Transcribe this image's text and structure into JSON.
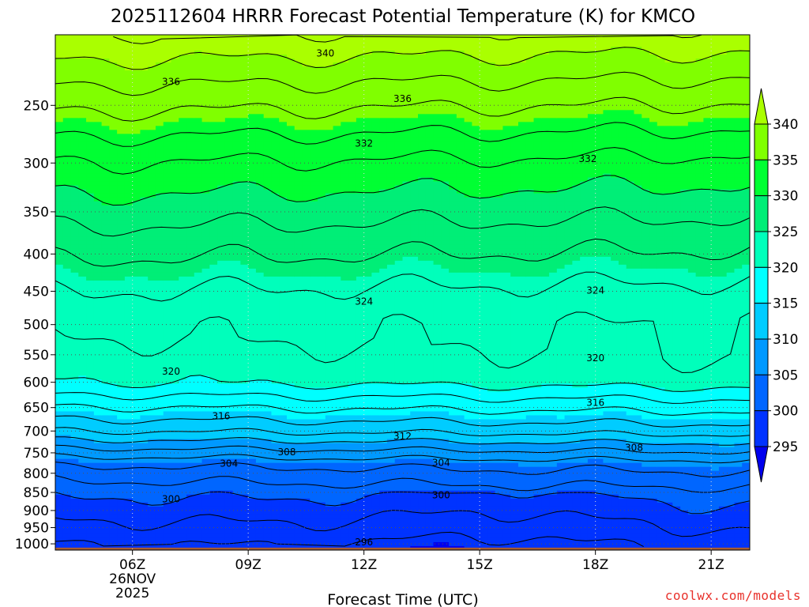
{
  "chart_data": {
    "type": "contour",
    "title": "2025112604 HRRR Forecast Potential Temperature (K) for KMCO",
    "xlabel": "Forecast Time (UTC)",
    "ylabel": "",
    "x_ticks": [
      {
        "label": "06Z",
        "hours": 6,
        "sub": [
          "26NOV",
          "2025"
        ]
      },
      {
        "label": "09Z",
        "hours": 9
      },
      {
        "label": "12Z",
        "hours": 12
      },
      {
        "label": "15Z",
        "hours": 15
      },
      {
        "label": "18Z",
        "hours": 18
      },
      {
        "label": "21Z",
        "hours": 21
      }
    ],
    "xlim_hours": [
      4,
      22
    ],
    "y_ticks": [
      250,
      300,
      350,
      400,
      450,
      500,
      550,
      600,
      650,
      700,
      750,
      800,
      850,
      900,
      950,
      1000
    ],
    "ylim_hpa": [
      200,
      1020
    ],
    "y_scale": "log",
    "contour_interval": 2,
    "contour_labels": [
      {
        "text": "340",
        "hours": 11,
        "hpa": 212
      },
      {
        "text": "336",
        "hours": 7,
        "hpa": 232
      },
      {
        "text": "336",
        "hours": 13,
        "hpa": 245
      },
      {
        "text": "332",
        "hours": 12,
        "hpa": 282
      },
      {
        "text": "332",
        "hours": 17.8,
        "hpa": 296
      },
      {
        "text": "324",
        "hours": 12,
        "hpa": 465
      },
      {
        "text": "324",
        "hours": 18,
        "hpa": 449
      },
      {
        "text": "320",
        "hours": 7,
        "hpa": 580
      },
      {
        "text": "320",
        "hours": 18,
        "hpa": 556
      },
      {
        "text": "316",
        "hours": 8.3,
        "hpa": 668
      },
      {
        "text": "316",
        "hours": 18,
        "hpa": 640
      },
      {
        "text": "312",
        "hours": 13,
        "hpa": 712
      },
      {
        "text": "308",
        "hours": 10,
        "hpa": 748
      },
      {
        "text": "308",
        "hours": 19,
        "hpa": 738
      },
      {
        "text": "304",
        "hours": 8.5,
        "hpa": 776
      },
      {
        "text": "304",
        "hours": 14,
        "hpa": 774
      },
      {
        "text": "300",
        "hours": 7,
        "hpa": 868
      },
      {
        "text": "300",
        "hours": 14,
        "hpa": 857
      },
      {
        "text": "296",
        "hours": 12,
        "hpa": 995
      }
    ],
    "colorbar": {
      "labels": [
        "340",
        "335",
        "330",
        "325",
        "320",
        "315",
        "310",
        "305",
        "300",
        "295"
      ],
      "colors": [
        "#aaff00",
        "#80ff00",
        "#00ff33",
        "#00ee77",
        "#00ffbb",
        "#00ffff",
        "#00ccff",
        "#0099ff",
        "#0066ff",
        "#0033ff",
        "#0000ee"
      ]
    },
    "ground_color": "#a55a33",
    "grid": true
  },
  "credit": "coolwx.com/models"
}
